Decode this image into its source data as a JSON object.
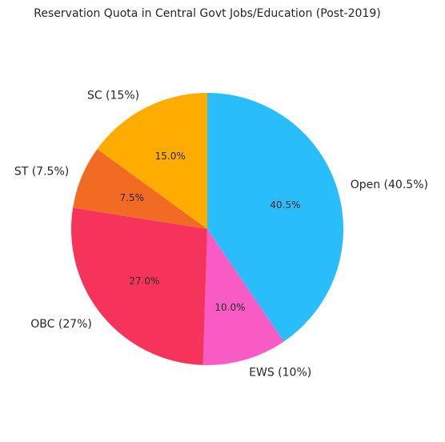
{
  "chart_data": {
    "type": "pie",
    "title": "Reservation Quota in Central Govt Jobs/Education (Post-2019)",
    "start_angle_deg": 90,
    "direction": "clockwise",
    "slices": [
      {
        "label": "Open (40.5%)",
        "value": 40.5,
        "pct_label": "40.5%",
        "color": "#29BDFB"
      },
      {
        "label": "EWS (10%)",
        "value": 10.0,
        "pct_label": "10.0%",
        "color": "#F85BC4"
      },
      {
        "label": "OBC (27%)",
        "value": 27.0,
        "pct_label": "27.0%",
        "color": "#F6335A"
      },
      {
        "label": "ST (7.5%)",
        "value": 7.5,
        "pct_label": "7.5%",
        "color": "#F26B23"
      },
      {
        "label": "SC (15%)",
        "value": 15.0,
        "pct_label": "15.0%",
        "color": "#FFAC00"
      }
    ]
  }
}
